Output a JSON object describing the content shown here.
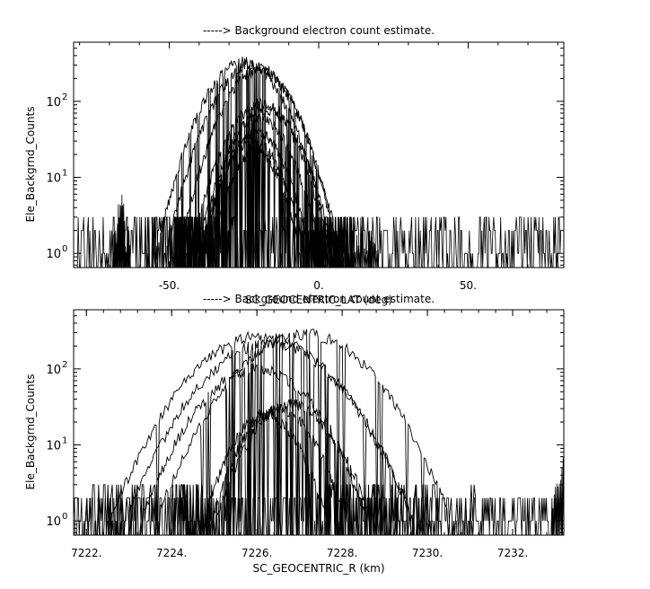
{
  "chart_data": [
    {
      "type": "line",
      "title": "-----> Background electron count estimate.",
      "xlabel": "SC_GEOCENTRIC_LAT (deg)",
      "ylabel": "Ele_Backgrnd_Counts",
      "xlim": [
        -82,
        82
      ],
      "ylim": [
        0.65,
        600
      ],
      "yscale": "log",
      "x_ticks": [
        -50,
        0,
        50
      ],
      "x_tick_labels": [
        "-50.",
        "0.",
        "50."
      ],
      "y_ticks": [
        1,
        10,
        100
      ],
      "y_tick_labels": [
        "10",
        "10",
        "10"
      ],
      "y_tick_exponents": [
        "0",
        "1",
        "2"
      ],
      "grid": false,
      "color": "#000000",
      "data_range": [
        -81,
        81
      ],
      "noise_floor": [
        1,
        3
      ],
      "spike_regions": [
        {
          "center": -66,
          "width": 3,
          "peak": 7
        },
        {
          "center": 15,
          "width": 5,
          "peak": 3
        }
      ],
      "series": [
        {
          "center": -25,
          "width": 13,
          "peak": 330
        },
        {
          "center": -22,
          "width": 13,
          "peak": 300
        },
        {
          "center": -20,
          "width": 12,
          "peak": 260
        },
        {
          "center": -19,
          "width": 12,
          "peak": 95
        },
        {
          "center": -18,
          "width": 11,
          "peak": 80
        },
        {
          "center": -20,
          "width": 11,
          "peak": 60
        },
        {
          "center": -21,
          "width": 10,
          "peak": 40
        },
        {
          "center": -22,
          "width": 10,
          "peak": 30
        },
        {
          "center": -21,
          "width": 9,
          "peak": 22
        }
      ]
    },
    {
      "type": "line",
      "title": "-----> Background electron count estimate.",
      "xlabel": "SC_GEOCENTRIC_R (km)",
      "ylabel": "Ele_Backgrnd_Counts",
      "xlim": [
        7221.7,
        7233.2
      ],
      "ylim": [
        0.65,
        600
      ],
      "yscale": "log",
      "x_ticks": [
        7222,
        7224,
        7226,
        7228,
        7230,
        7232
      ],
      "x_tick_labels": [
        "7222.",
        "7224.",
        "7226.",
        "7228.",
        "7230.",
        "7232."
      ],
      "y_ticks": [
        1,
        10,
        100
      ],
      "y_tick_labels": [
        "10",
        "10",
        "10"
      ],
      "y_tick_exponents": [
        "0",
        "1",
        "2"
      ],
      "grid": false,
      "color": "#000000",
      "data_range": [
        7221.7,
        7233.2
      ],
      "noise_floor": [
        1,
        2
      ],
      "spike_regions": [
        {
          "center": 7233.2,
          "width": 0.3,
          "peak": 7
        }
      ],
      "series": [
        {
          "center": 7227.1,
          "width": 1.55,
          "peak": 290
        },
        {
          "center": 7226.1,
          "width": 1.6,
          "peak": 270
        },
        {
          "center": 7226.3,
          "width": 1.55,
          "peak": 220
        },
        {
          "center": 7226.0,
          "width": 1.35,
          "peak": 100
        },
        {
          "center": 7226.8,
          "width": 1.0,
          "peak": 35
        },
        {
          "center": 7226.5,
          "width": 0.9,
          "peak": 30
        },
        {
          "center": 7226.2,
          "width": 0.85,
          "peak": 25
        }
      ]
    }
  ]
}
